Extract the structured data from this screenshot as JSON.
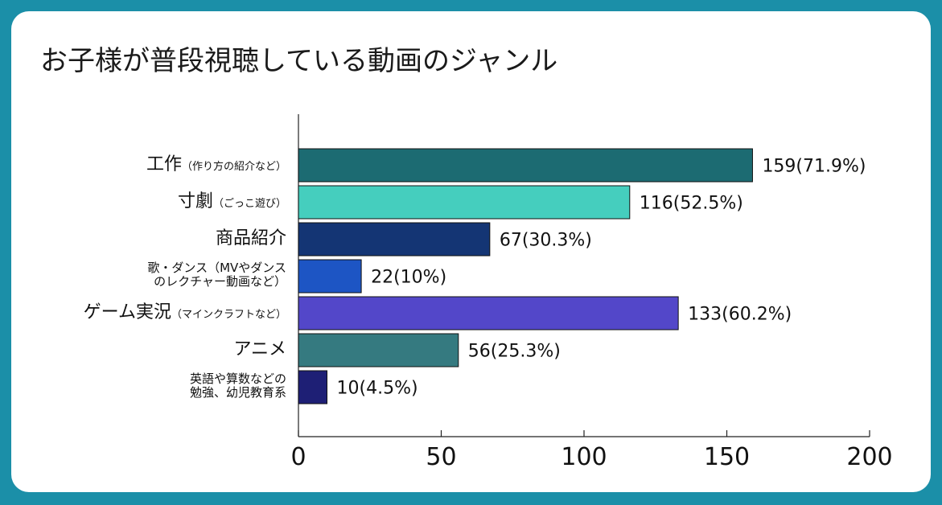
{
  "title": "お子様が普段視聴している動画のジャンル",
  "chart_data": {
    "type": "bar",
    "orientation": "horizontal",
    "title": "お子様が普段視聴している動画のジャンル",
    "categories": [
      {
        "main": "工作",
        "sub": "（作り方の紹介など）"
      },
      {
        "main": "寸劇",
        "sub": "（ごっこ遊び）"
      },
      {
        "main": "商品紹介",
        "sub": ""
      },
      {
        "lines": [
          "歌・ダンス（MVやダンス",
          "のレクチャー動画など）"
        ]
      },
      {
        "main": "ゲーム実況",
        "sub": "（マインクラフトなど）"
      },
      {
        "main": "アニメ",
        "sub": ""
      },
      {
        "lines": [
          "英語や算数などの",
          "勉強、幼児教育系"
        ]
      }
    ],
    "values": [
      159,
      116,
      67,
      22,
      133,
      56,
      10
    ],
    "data_labels": [
      "159(71.9%)",
      "116(52.5%)",
      "67(30.3%)",
      "22(10%)",
      "133(60.2%)",
      "56(25.3%)",
      "10(4.5%)"
    ],
    "colors": [
      "#1c6b72",
      "#45cebe",
      "#143574",
      "#1d55c4",
      "#5347c9",
      "#357a80",
      "#1e1f75"
    ],
    "xlim": [
      0,
      200
    ],
    "xticks": [
      "0",
      "50",
      "100",
      "150",
      "200"
    ],
    "grid": false,
    "legend": "none"
  }
}
